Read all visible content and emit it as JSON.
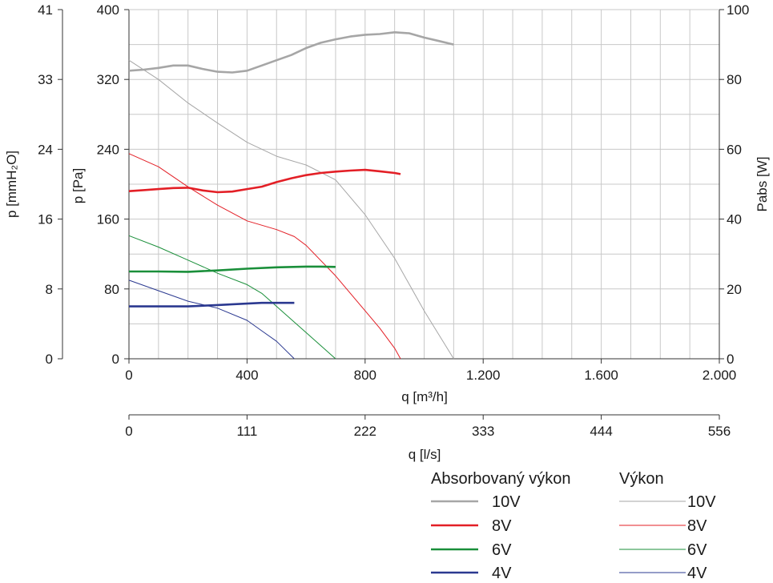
{
  "chart_data": {
    "type": "line",
    "x_axis_top": {
      "label": "q [m³/h]",
      "ticks": [
        "0",
        "400",
        "800",
        "1.200",
        "1.600",
        "2.000"
      ],
      "tick_values": [
        0,
        400,
        800,
        1200,
        1600,
        2000
      ],
      "range": [
        0,
        2000
      ]
    },
    "x_axis_bottom": {
      "label": "q [l/s]",
      "ticks": [
        "0",
        "111",
        "222",
        "333",
        "444",
        "556"
      ],
      "range": [
        0,
        556
      ]
    },
    "y_axis_left_outer": {
      "label": "p [mmH₂O]",
      "ticks": [
        "0",
        "8",
        "16",
        "24",
        "33",
        "41"
      ]
    },
    "y_axis_left": {
      "label": "p [Pa]",
      "ticks": [
        "0",
        "80",
        "160",
        "240",
        "320",
        "400"
      ],
      "range": [
        0,
        400
      ]
    },
    "y_axis_right": {
      "label": "Pabs [W]",
      "ticks": [
        "0",
        "20",
        "40",
        "60",
        "80",
        "100"
      ],
      "range": [
        0,
        100
      ]
    },
    "grid": true,
    "legend": {
      "placement": "bottom-right",
      "group_power_title": "Absorbovaný výkon",
      "group_pressure_title": "Výkon",
      "items": [
        "10V",
        "8V",
        "6V",
        "4V"
      ]
    },
    "series_pressure": [
      {
        "name": "10V",
        "color": "#a6a6a6",
        "axis": "p [Pa]",
        "x": [
          0,
          100,
          200,
          300,
          400,
          500,
          600,
          700,
          800,
          900,
          1000,
          1060,
          1100
        ],
        "y": [
          342,
          320,
          293,
          270,
          248,
          232,
          222,
          205,
          165,
          115,
          55,
          22,
          0
        ]
      },
      {
        "name": "8V",
        "color": "#e31f26",
        "axis": "p [Pa]",
        "x": [
          0,
          100,
          200,
          300,
          400,
          500,
          560,
          600,
          700,
          800,
          850,
          900,
          920
        ],
        "y": [
          235,
          220,
          197,
          176,
          158,
          148,
          140,
          130,
          95,
          55,
          35,
          12,
          0
        ]
      },
      {
        "name": "6V",
        "color": "#1a8f3a",
        "axis": "p [Pa]",
        "x": [
          0,
          100,
          200,
          300,
          400,
          450,
          500,
          600,
          650,
          700
        ],
        "y": [
          141,
          128,
          113,
          98,
          85,
          75,
          60,
          30,
          15,
          0
        ]
      },
      {
        "name": "4V",
        "color": "#2b3990",
        "axis": "p [Pa]",
        "x": [
          0,
          100,
          200,
          300,
          400,
          450,
          500,
          560
        ],
        "y": [
          90,
          78,
          66,
          58,
          44,
          32,
          20,
          0
        ]
      }
    ],
    "series_power": [
      {
        "name": "10V",
        "color": "#a6a6a6",
        "axis": "Pabs [W]",
        "x": [
          0,
          50,
          100,
          150,
          200,
          250,
          300,
          350,
          400,
          450,
          500,
          550,
          600,
          650,
          700,
          750,
          800,
          850,
          900,
          950,
          1000,
          1050,
          1100
        ],
        "y": [
          82.5,
          82.8,
          83.3,
          84.0,
          84.0,
          83.0,
          82.2,
          82.0,
          82.5,
          84.0,
          85.5,
          87.0,
          89.0,
          90.5,
          91.5,
          92.3,
          92.8,
          93.0,
          93.5,
          93.2,
          92.0,
          91.0,
          90.0
        ]
      },
      {
        "name": "8V",
        "color": "#e31f26",
        "axis": "Pabs [W]",
        "x": [
          0,
          50,
          100,
          150,
          200,
          250,
          300,
          350,
          400,
          450,
          500,
          550,
          600,
          650,
          700,
          750,
          800,
          850,
          900,
          920
        ],
        "y": [
          48.0,
          48.3,
          48.6,
          48.9,
          49.0,
          48.2,
          47.7,
          47.9,
          48.6,
          49.3,
          50.6,
          51.7,
          52.6,
          53.2,
          53.6,
          53.9,
          54.1,
          53.7,
          53.2,
          52.9
        ]
      },
      {
        "name": "6V",
        "color": "#1a8f3a",
        "axis": "Pabs [W]",
        "x": [
          0,
          100,
          200,
          300,
          400,
          500,
          600,
          650,
          700
        ],
        "y": [
          25.0,
          25.0,
          24.9,
          25.3,
          25.8,
          26.2,
          26.4,
          26.4,
          26.3
        ]
      },
      {
        "name": "4V",
        "color": "#2b3990",
        "axis": "Pabs [W]",
        "x": [
          0,
          100,
          200,
          300,
          400,
          450,
          500,
          560
        ],
        "y": [
          15.0,
          15.0,
          15.0,
          15.4,
          15.8,
          16.0,
          16.0,
          16.0
        ]
      }
    ]
  }
}
